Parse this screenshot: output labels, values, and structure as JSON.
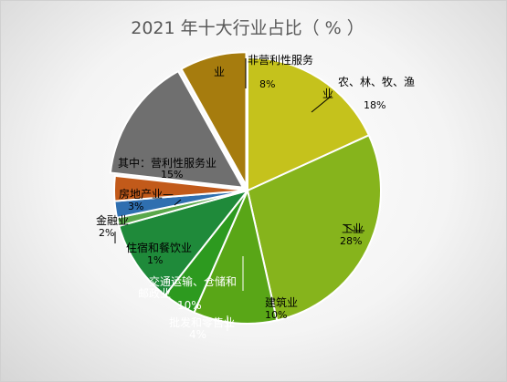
{
  "chart_data": {
    "type": "pie",
    "title": "2021 年十大行业占比（ % ）",
    "slices": [
      {
        "key": "agri",
        "name": "农、林、牧、渔业",
        "value": 18,
        "label": "18%",
        "color": "#c5c21c"
      },
      {
        "key": "industry",
        "name": "工业",
        "value": 28,
        "label": "28%",
        "color": "#86b41c"
      },
      {
        "key": "construction",
        "name": "建筑业",
        "value": 10,
        "label": "10%",
        "color": "#59a617"
      },
      {
        "key": "retail",
        "name": "批发和零售业",
        "value": 4,
        "label": "4%",
        "color": "#2d9a1f"
      },
      {
        "key": "transport",
        "name": "交通运输、仓储和邮政业",
        "value": 10,
        "label": "10%",
        "color": "#1f8a3a"
      },
      {
        "key": "hospitality",
        "name": "住宿和餐饮业",
        "value": 1,
        "label": "1%",
        "color": "#5aa84a"
      },
      {
        "key": "finance",
        "name": "金融业",
        "value": 2,
        "label": "2%",
        "color": "#2f6fb0"
      },
      {
        "key": "realestate",
        "name": "房地产业—",
        "value": 3,
        "label": "3%",
        "color": "#c25a1a"
      },
      {
        "key": "profit_services",
        "name": "其中：营利性服务业",
        "value": 15,
        "label": "15%",
        "color": "#6f6f6f"
      },
      {
        "key": "nonprofit_services",
        "name": "非营利性服务业",
        "value": 8,
        "label": "8%",
        "color": "#a67c0e"
      }
    ]
  },
  "labels": {
    "agri_line1": "农、林、牧、渔",
    "agri_line2": "业",
    "industry": "工业",
    "construction": "建筑业",
    "retail": "批发和零售业",
    "transport_line1": "交通运输、仓储和",
    "transport_line2": "邮政业",
    "hospitality": "住宿和餐饮业",
    "finance": "金融业",
    "realestate": "房地产业—",
    "profit_services": "其中：营利性服务业",
    "nonprofit_line1": "非营利性服务",
    "nonprofit_line2": "业"
  }
}
